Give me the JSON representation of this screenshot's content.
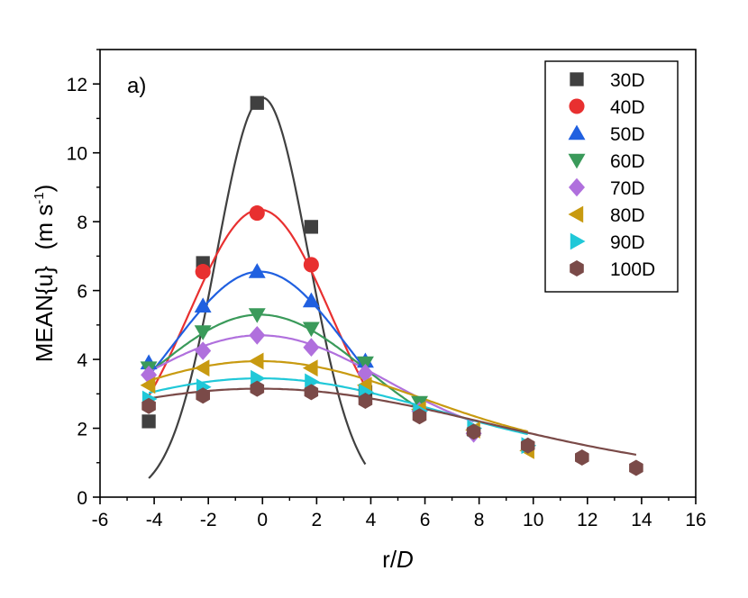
{
  "chart_data": {
    "type": "scatter",
    "panel_label": "a)",
    "xlabel_main": "r/",
    "xlabel_italic": "D",
    "ylabel": "MEAN{u}",
    "yunit": "(m s",
    "yunit_exp": "-1",
    "yunit_close": ")",
    "xlim": [
      -6,
      16
    ],
    "ylim": [
      0,
      13
    ],
    "x_ticks": [
      -6,
      -4,
      -2,
      0,
      2,
      4,
      6,
      8,
      10,
      12,
      14,
      16
    ],
    "y_ticks": [
      0,
      2,
      4,
      6,
      8,
      10,
      12
    ],
    "series": [
      {
        "name": "30D",
        "marker": "square",
        "color": "#404040",
        "x": [
          -4.2,
          -2.2,
          -0.2,
          1.8,
          3.8
        ],
        "y": [
          2.2,
          6.8,
          11.45,
          7.85,
          3.05
        ],
        "fit": {
          "A": 11.6,
          "mu": 0.0,
          "sigma": 1.7,
          "c": 0.0,
          "xmin": -4.2,
          "xmax": 3.8
        }
      },
      {
        "name": "40D",
        "marker": "circle",
        "color": "#e83030",
        "x": [
          -2.2,
          -0.2,
          1.8
        ],
        "y": [
          6.55,
          8.25,
          6.75
        ],
        "fit": {
          "A": 7.6,
          "mu": -0.1,
          "sigma": 2.6,
          "c": 0.75,
          "xmin": -4.2,
          "xmax": 3.8
        }
      },
      {
        "name": "50D",
        "marker": "triangle-up",
        "color": "#2060e0",
        "x": [
          -4.2,
          -2.2,
          -0.2,
          1.8,
          3.8
        ],
        "y": [
          3.9,
          5.55,
          6.55,
          5.7,
          3.95
        ],
        "fit": {
          "A": 5.4,
          "mu": -0.1,
          "sigma": 3.2,
          "c": 1.15,
          "xmin": -4.2,
          "xmax": 3.8
        }
      },
      {
        "name": "60D",
        "marker": "triangle-down",
        "color": "#3a9a5a",
        "x": [
          -4.2,
          -2.2,
          -0.2,
          1.8,
          3.8,
          5.8
        ],
        "y": [
          3.75,
          4.8,
          5.3,
          4.9,
          3.9,
          2.75
        ],
        "fit": {
          "A": 4.0,
          "mu": -0.1,
          "sigma": 3.9,
          "c": 1.3,
          "xmin": -4.2,
          "xmax": 5.8
        }
      },
      {
        "name": "70D",
        "marker": "diamond",
        "color": "#b070dd",
        "x": [
          -4.2,
          -2.2,
          -0.2,
          1.8,
          3.8,
          5.8,
          7.8
        ],
        "y": [
          3.55,
          4.25,
          4.7,
          4.35,
          3.6,
          2.5,
          1.85
        ],
        "fit": {
          "A": 3.25,
          "mu": -0.1,
          "sigma": 4.6,
          "c": 1.45,
          "xmin": -4.2,
          "xmax": 7.8
        }
      },
      {
        "name": "80D",
        "marker": "triangle-left",
        "color": "#c89a10",
        "x": [
          -4.2,
          -2.2,
          -0.2,
          1.8,
          3.8,
          5.8,
          7.8,
          9.8
        ],
        "y": [
          3.25,
          3.75,
          3.95,
          3.75,
          3.25,
          2.55,
          1.95,
          1.35
        ],
        "fit": {
          "A": 2.75,
          "mu": -0.1,
          "sigma": 6.0,
          "c": 1.2,
          "xmin": -4.2,
          "xmax": 9.8
        }
      },
      {
        "name": "90D",
        "marker": "triangle-right",
        "color": "#20c8d8",
        "x": [
          -4.2,
          -2.2,
          -0.2,
          1.8,
          3.8,
          5.8,
          7.8,
          9.8
        ],
        "y": [
          2.85,
          3.2,
          3.45,
          3.35,
          3.05,
          2.5,
          2.0,
          1.5
        ],
        "fit": {
          "A": 2.4,
          "mu": -0.1,
          "sigma": 6.6,
          "c": 1.05,
          "xmin": -4.2,
          "xmax": 9.8
        }
      },
      {
        "name": "100D",
        "marker": "hexagon",
        "color": "#7a4a48",
        "x": [
          -4.2,
          -2.2,
          -0.2,
          1.8,
          3.8,
          5.8,
          7.8,
          9.8,
          11.8,
          13.8
        ],
        "y": [
          2.65,
          2.95,
          3.15,
          3.05,
          2.8,
          2.35,
          1.9,
          1.5,
          1.15,
          0.85
        ],
        "fit": {
          "A": 2.6,
          "mu": -0.1,
          "sigma": 8.5,
          "c": 0.55,
          "xmin": -4.2,
          "xmax": 13.8
        }
      }
    ]
  }
}
